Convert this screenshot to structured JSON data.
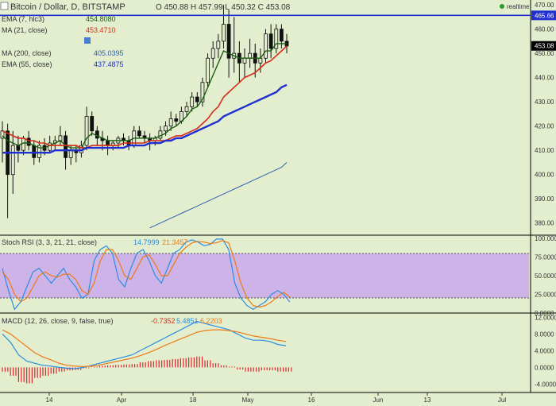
{
  "header": {
    "symbol": "Bitcoin / Dollar, D, BITSTAMP",
    "ohlc": "O 450.88  H 457.99  L 450.32  C 453.08",
    "realtime_label": "realtime"
  },
  "indicators": [
    {
      "name": "EMA (7, hlc3)",
      "value": "454.8080",
      "color": "#1a5c0f"
    },
    {
      "name": "MA (21, close)",
      "value": "453.4710",
      "color": "#d62a18"
    },
    {
      "name": "MA (200, close)",
      "value": "405.0395",
      "color": "#2f5fae"
    },
    {
      "name": "EMA (55, close)",
      "value": "437.4875",
      "color": "#1f2fd0"
    }
  ],
  "stoch": {
    "title": "Stoch RSI (3, 3, 21, 21, close)",
    "k": "14.7999",
    "d": "21.3457",
    "k_color": "#2a8ee0",
    "d_color": "#ee7a14"
  },
  "macd": {
    "title": "MACD (12, 26, close, 9, false, true)",
    "hist": "-0.7352",
    "macd": "5.4851",
    "signal": "6.2203",
    "macd_color": "#2a8ee0",
    "signal_color": "#ee7a14"
  },
  "price_axis": {
    "ticks": [
      "470.00",
      "460.00",
      "450.00",
      "440.00",
      "430.00",
      "420.00",
      "410.00",
      "400.00",
      "390.00",
      "380.00"
    ],
    "current": "453.08",
    "line_level": "465.66"
  },
  "stoch_axis": {
    "ticks": [
      "100.0000",
      "75.0000",
      "50.0000",
      "25.0000",
      "0.0000"
    ]
  },
  "macd_axis": {
    "ticks": [
      "12.0000",
      "8.0000",
      "4.0000",
      "0.0000",
      "-4.0000"
    ]
  },
  "time_axis": {
    "ticks": [
      "14",
      "Apr",
      "18",
      "May",
      "16",
      "Jun",
      "13",
      "Jul"
    ]
  },
  "chart_data": {
    "type": "candlestick",
    "price_range": [
      375,
      472
    ],
    "candles": [
      [
        415,
        422,
        405,
        418
      ],
      [
        418,
        421,
        382,
        400
      ],
      [
        400,
        418,
        392,
        412
      ],
      [
        412,
        416,
        405,
        410
      ],
      [
        410,
        416,
        408,
        415
      ],
      [
        415,
        418,
        410,
        412
      ],
      [
        412,
        414,
        404,
        407
      ],
      [
        407,
        414,
        405,
        412
      ],
      [
        412,
        415,
        408,
        410
      ],
      [
        410,
        416,
        409,
        413
      ],
      [
        413,
        416,
        410,
        414
      ],
      [
        414,
        420,
        412,
        416
      ],
      [
        416,
        418,
        402,
        407
      ],
      [
        407,
        412,
        404,
        410
      ],
      [
        410,
        412,
        405,
        409
      ],
      [
        409,
        414,
        407,
        412
      ],
      [
        412,
        428,
        410,
        424
      ],
      [
        424,
        426,
        416,
        418
      ],
      [
        418,
        420,
        412,
        415
      ],
      [
        415,
        418,
        410,
        414
      ],
      [
        414,
        416,
        408,
        412
      ],
      [
        412,
        414,
        410,
        413
      ],
      [
        413,
        416,
        411,
        415
      ],
      [
        415,
        417,
        412,
        414
      ],
      [
        414,
        416,
        410,
        412
      ],
      [
        412,
        420,
        411,
        418
      ],
      [
        418,
        420,
        415,
        416
      ],
      [
        416,
        418,
        413,
        415
      ],
      [
        415,
        417,
        410,
        414
      ],
      [
        414,
        416,
        412,
        415
      ],
      [
        415,
        420,
        414,
        418
      ],
      [
        418,
        422,
        416,
        420
      ],
      [
        420,
        426,
        418,
        423
      ],
      [
        423,
        425,
        420,
        422
      ],
      [
        422,
        428,
        421,
        426
      ],
      [
        426,
        430,
        424,
        428
      ],
      [
        428,
        434,
        426,
        432
      ],
      [
        432,
        434,
        428,
        430
      ],
      [
        430,
        440,
        428,
        438
      ],
      [
        438,
        450,
        436,
        448
      ],
      [
        448,
        455,
        444,
        452
      ],
      [
        452,
        458,
        448,
        455
      ],
      [
        455,
        470,
        452,
        462
      ],
      [
        462,
        468,
        440,
        448
      ],
      [
        448,
        465,
        442,
        450
      ],
      [
        450,
        455,
        438,
        446
      ],
      [
        446,
        452,
        440,
        448
      ],
      [
        448,
        456,
        444,
        450
      ],
      [
        450,
        454,
        440,
        446
      ],
      [
        446,
        452,
        442,
        448
      ],
      [
        448,
        460,
        446,
        458
      ],
      [
        458,
        462,
        448,
        452
      ],
      [
        452,
        462,
        450,
        460
      ],
      [
        460,
        462,
        452,
        455
      ],
      [
        455,
        458,
        450,
        453
      ]
    ],
    "series": [
      {
        "name": "EMA (7, hlc3)",
        "values": [
          416,
          414,
          413,
          412,
          413,
          413,
          412,
          411,
          411,
          412,
          413,
          414,
          412,
          411,
          411,
          411,
          415,
          417,
          416,
          415,
          414,
          414,
          414,
          414,
          414,
          415,
          415,
          415,
          415,
          415,
          416,
          417,
          419,
          420,
          422,
          424,
          427,
          428,
          431,
          436,
          441,
          446,
          451,
          450,
          449,
          448,
          448,
          448,
          448,
          448,
          451,
          451,
          454,
          454,
          454
        ]
      },
      {
        "name": "MA (21, close)",
        "values": [
          418,
          417,
          416,
          415,
          415,
          414,
          414,
          413,
          413,
          412,
          412,
          412,
          412,
          412,
          412,
          411,
          411,
          412,
          412,
          412,
          412,
          412,
          412,
          413,
          413,
          413,
          413,
          413,
          414,
          414,
          414,
          414,
          415,
          416,
          416,
          417,
          418,
          419,
          421,
          423,
          426,
          428,
          432,
          434,
          436,
          438,
          440,
          441,
          442,
          444,
          446,
          447,
          449,
          451,
          453
        ]
      },
      {
        "name": "MA (200, close)",
        "values": [
          null,
          null,
          null,
          null,
          null,
          null,
          null,
          null,
          null,
          null,
          null,
          null,
          null,
          null,
          null,
          null,
          null,
          null,
          null,
          null,
          null,
          null,
          null,
          null,
          null,
          null,
          null,
          null,
          378,
          379,
          380,
          381,
          382,
          383,
          384,
          385,
          386,
          387,
          388,
          389,
          390,
          391,
          392,
          393,
          394,
          395,
          396,
          397,
          398,
          399,
          400,
          401,
          402,
          403,
          405
        ]
      },
      {
        "name": "EMA (55, close)",
        "values": [
          409,
          409,
          409,
          409,
          409,
          409,
          409,
          409,
          409,
          409,
          410,
          410,
          410,
          410,
          410,
          410,
          411,
          411,
          411,
          411,
          411,
          411,
          411,
          411,
          412,
          412,
          412,
          412,
          413,
          413,
          413,
          414,
          414,
          415,
          415,
          416,
          417,
          418,
          419,
          420,
          421,
          422,
          424,
          425,
          426,
          427,
          428,
          429,
          430,
          431,
          432,
          433,
          434,
          436,
          437
        ]
      }
    ],
    "stoch_rsi": {
      "range": [
        0,
        100
      ],
      "k": [
        60,
        30,
        5,
        15,
        35,
        55,
        60,
        50,
        40,
        50,
        60,
        45,
        35,
        20,
        25,
        70,
        85,
        90,
        80,
        45,
        35,
        60,
        80,
        85,
        70,
        50,
        40,
        60,
        80,
        85,
        95,
        98,
        95,
        90,
        92,
        99,
        99,
        85,
        40,
        20,
        10,
        5,
        10,
        15,
        25,
        30,
        25,
        14.8
      ],
      "d": [
        55,
        45,
        25,
        15,
        20,
        35,
        50,
        55,
        50,
        48,
        52,
        52,
        45,
        30,
        25,
        40,
        70,
        85,
        85,
        70,
        50,
        45,
        60,
        75,
        78,
        65,
        50,
        50,
        65,
        80,
        88,
        94,
        96,
        95,
        93,
        94,
        97,
        94,
        70,
        40,
        20,
        10,
        8,
        10,
        15,
        22,
        28,
        21.3
      ]
    },
    "macd": {
      "range": [
        -6,
        13
      ],
      "macd": [
        8,
        6,
        3,
        1.5,
        1,
        0.5,
        0.3,
        0,
        -0.2,
        -0.3,
        0,
        0.5,
        1,
        1.5,
        2,
        2.5,
        3,
        4,
        5,
        6,
        7,
        8,
        9,
        10,
        11,
        10.5,
        10,
        9.5,
        9,
        8,
        7,
        6.5,
        6.5,
        6.2,
        5.5,
        5.2
      ],
      "signal": [
        9,
        8,
        6.5,
        5,
        3.5,
        2.5,
        1.8,
        1,
        0.5,
        0.3,
        0.2,
        0.3,
        0.6,
        1,
        1.4,
        1.8,
        2.2,
        2.8,
        3.5,
        4.3,
        5.2,
        6,
        6.8,
        7.6,
        8.4,
        8.8,
        9,
        9,
        8.8,
        8.5,
        8,
        7.5,
        7.2,
        6.9,
        6.5,
        6.2
      ],
      "hist": [
        -1,
        -2,
        -3.5,
        -3.8,
        -2.5,
        -2,
        -1.5,
        -1,
        -0.7,
        -0.6,
        -0.2,
        0.2,
        0.4,
        0.5,
        0.6,
        0.7,
        0.8,
        1.2,
        1.5,
        1.7,
        1.8,
        2,
        2.2,
        2.4,
        2.6,
        1.7,
        1,
        0.5,
        0.2,
        -0.5,
        -1,
        -1,
        -0.7,
        -0.7,
        -1,
        -1
      ]
    }
  }
}
